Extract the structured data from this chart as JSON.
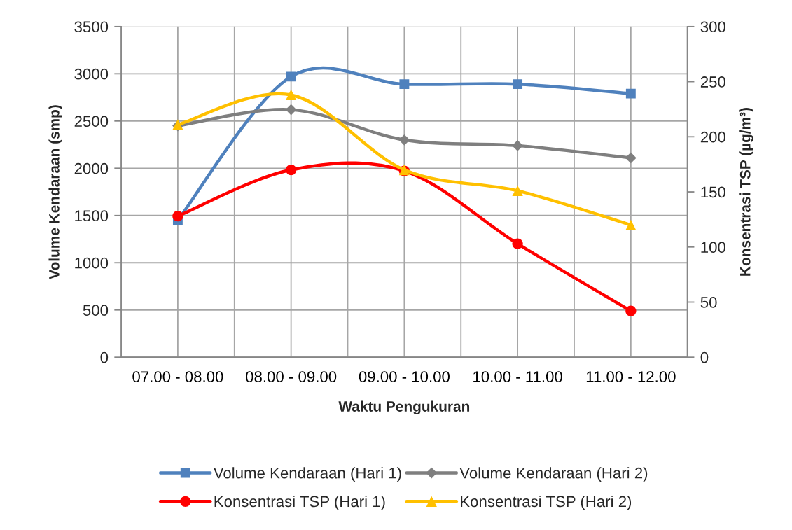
{
  "chart_data": {
    "type": "line",
    "xlabel": "Waktu Pengukuran",
    "ylabel": "Volume Kendaraan (smp)",
    "y2label": "Konsentrasi TSP (µg/m³)",
    "categories": [
      "07.00 - 08.00",
      "08.00 - 09.00",
      "09.00 - 10.00",
      "10.00 - 11.00",
      "11.00 - 12.00"
    ],
    "series": [
      {
        "name": "Volume Kendaraan (Hari 1)",
        "color": "#4f81bd",
        "marker": "square",
        "values": [
          1450,
          2970,
          2890,
          2890,
          2790
        ]
      },
      {
        "name": "Volume Kendaraan (Hari 2)",
        "color": "#7f7f7f",
        "marker": "diamond",
        "values": [
          2450,
          2620,
          2300,
          2240,
          2110
        ]
      },
      {
        "name": "Konsentrasi TSP (Hari 1)",
        "color": "#ff0000",
        "marker": "circle",
        "axis": "y2",
        "values": [
          128,
          170,
          169,
          103,
          42
        ]
      },
      {
        "name": "Konsentrasi TSP (Hari 2)",
        "color": "#ffc000",
        "marker": "triangle",
        "axis": "y2",
        "values": [
          211,
          238,
          170,
          151,
          120
        ]
      }
    ],
    "ylim": [
      0,
      3500
    ],
    "yticks": [
      0,
      500,
      1000,
      1500,
      2000,
      2500,
      3000,
      3500
    ],
    "y2lim": [
      0,
      300
    ],
    "y2ticks": [
      0,
      50,
      100,
      150,
      200,
      250,
      300
    ],
    "grid": true,
    "legend": "bottom",
    "line_style": "solid"
  }
}
